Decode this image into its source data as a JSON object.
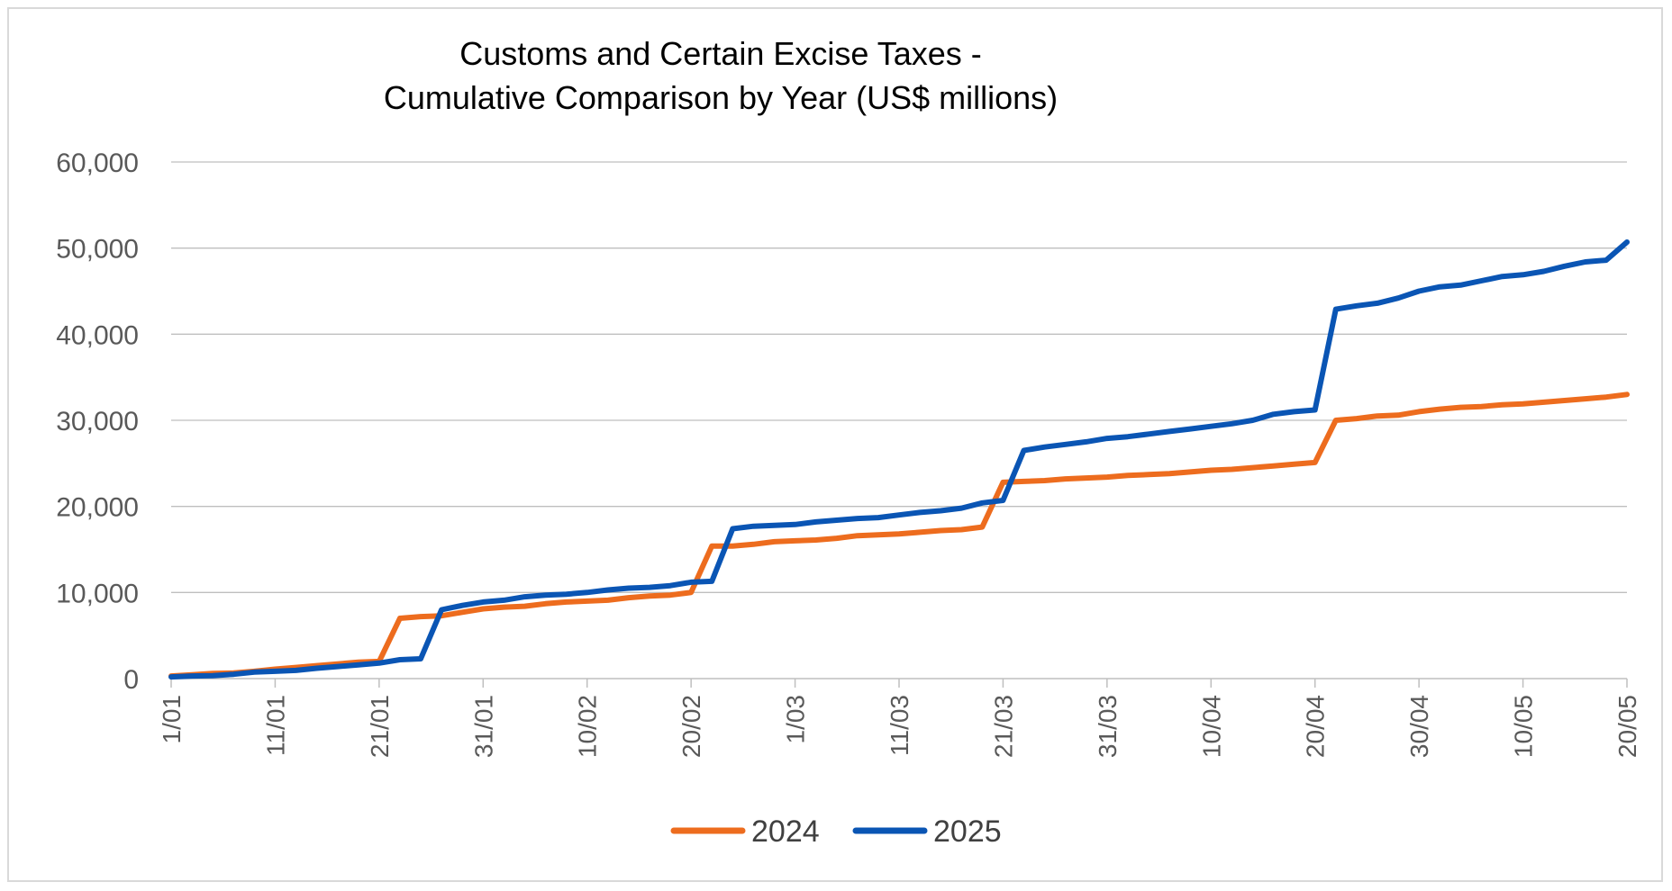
{
  "chart_data": {
    "type": "line",
    "title": [
      "Customs and Certain Excise Taxes -",
      "Cumulative Comparison by Year (US$ millions)"
    ],
    "xlabel": "",
    "ylabel": "",
    "x": [
      "1/01",
      "3/01",
      "5/01",
      "7/01",
      "9/01",
      "11/01",
      "13/01",
      "15/01",
      "17/01",
      "19/01",
      "21/01",
      "23/01",
      "25/01",
      "27/01",
      "29/01",
      "31/01",
      "2/02",
      "4/02",
      "6/02",
      "8/02",
      "10/02",
      "12/02",
      "14/02",
      "16/02",
      "18/02",
      "20/02",
      "22/02",
      "24/02",
      "26/02",
      "28/02",
      "1/03",
      "3/03",
      "5/03",
      "7/03",
      "9/03",
      "11/03",
      "13/03",
      "15/03",
      "17/03",
      "19/03",
      "21/03",
      "23/03",
      "25/03",
      "27/03",
      "29/03",
      "31/03",
      "2/04",
      "4/04",
      "6/04",
      "8/04",
      "10/04",
      "12/04",
      "14/04",
      "16/04",
      "18/04",
      "20/04",
      "22/04",
      "24/04",
      "26/04",
      "28/04",
      "30/04",
      "2/05",
      "4/05",
      "6/05",
      "8/05",
      "10/05",
      "12/05",
      "14/05",
      "16/05",
      "18/05",
      "20/05"
    ],
    "xticks": [
      "1/01",
      "11/01",
      "21/01",
      "31/01",
      "10/02",
      "20/02",
      "1/03",
      "11/03",
      "21/03",
      "31/03",
      "10/04",
      "20/04",
      "30/04",
      "10/05",
      "20/05"
    ],
    "yticks": [
      "0",
      "10,000",
      "20,000",
      "30,000",
      "40,000",
      "50,000",
      "60,000"
    ],
    "ylim": [
      0,
      60000
    ],
    "grid": "horizontal",
    "legend_position": "bottom",
    "series": [
      {
        "name": "2024",
        "color": "#ED6C1E",
        "values": [
          300,
          450,
          600,
          650,
          850,
          1100,
          1300,
          1500,
          1700,
          1900,
          2000,
          7000,
          7200,
          7300,
          7700,
          8100,
          8300,
          8400,
          8700,
          8900,
          9000,
          9100,
          9400,
          9600,
          9700,
          10000,
          15400,
          15400,
          15600,
          15900,
          16000,
          16100,
          16300,
          16600,
          16700,
          16800,
          17000,
          17200,
          17300,
          17600,
          22800,
          22900,
          23000,
          23200,
          23300,
          23400,
          23600,
          23700,
          23800,
          24000,
          24200,
          24300,
          24500,
          24700,
          24900,
          25100,
          30000,
          30200,
          30500,
          30600,
          31000,
          31300,
          31500,
          31600,
          31800,
          31900,
          32100,
          32300,
          32500,
          32700,
          33000
        ]
      },
      {
        "name": "2025",
        "color": "#0A55B4",
        "values": [
          200,
          300,
          350,
          500,
          750,
          850,
          950,
          1200,
          1400,
          1600,
          1800,
          2200,
          2300,
          8000,
          8500,
          8900,
          9100,
          9500,
          9700,
          9800,
          10000,
          10300,
          10500,
          10600,
          10800,
          11200,
          11300,
          17400,
          17700,
          17800,
          17900,
          18200,
          18400,
          18600,
          18700,
          19000,
          19300,
          19500,
          19800,
          20400,
          20700,
          26500,
          26900,
          27200,
          27500,
          27900,
          28100,
          28400,
          28700,
          29000,
          29300,
          29600,
          30000,
          30700,
          31000,
          31200,
          42900,
          43300,
          43600,
          44200,
          45000,
          45500,
          45700,
          46200,
          46700,
          46900,
          47300,
          47900,
          48400,
          48600,
          50700
        ]
      }
    ]
  }
}
